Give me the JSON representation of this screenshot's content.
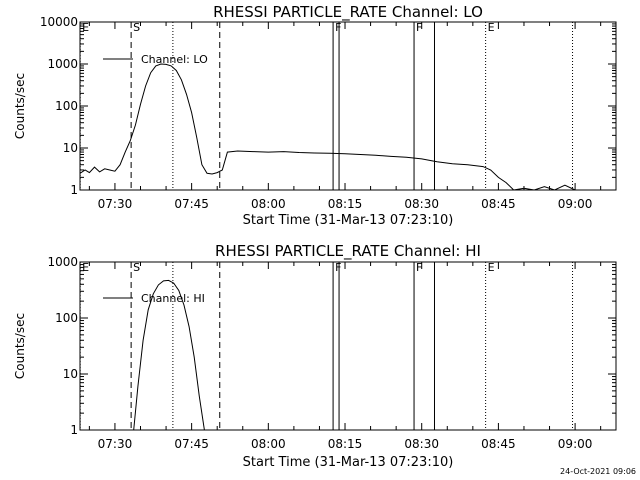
{
  "figure": {
    "timestamp": "24-Oct-2021 09:06"
  },
  "chart_data": [
    {
      "type": "line",
      "title": "RHESSI PARTICLE_RATE Channel: LO",
      "xlabel": "Start Time (31-Mar-13 07:23:10)",
      "ylabel": "Counts/sec",
      "yscale": "log",
      "xlim": [
        "07:23:10",
        "09:08:00"
      ],
      "ylim": [
        1,
        10000
      ],
      "xticks": [
        "07:30",
        "07:45",
        "08:00",
        "08:15",
        "08:30",
        "08:45",
        "09:00"
      ],
      "yticks": [
        "1",
        "10",
        "100",
        "1000",
        "10000"
      ],
      "grid": false,
      "legend": {
        "position": "top-left",
        "entries": [
          "Channel: LO"
        ]
      },
      "markers": [
        {
          "label": "E",
          "time": "07:23:12",
          "style": "dotted"
        },
        {
          "label": "S",
          "time": "07:33:10",
          "style": "dashed"
        },
        {
          "label": "",
          "time": "07:41:20",
          "style": "dotted"
        },
        {
          "label": "",
          "time": "07:50:30",
          "style": "dashed"
        },
        {
          "label": "F",
          "time": "08:12:40",
          "style": "solid"
        },
        {
          "label": "",
          "time": "08:13:50",
          "style": "solid"
        },
        {
          "label": "F",
          "time": "08:28:30",
          "style": "solid"
        },
        {
          "label": "",
          "time": "08:32:30",
          "style": "solid"
        },
        {
          "label": "E",
          "time": "08:42:30",
          "style": "dotted"
        },
        {
          "label": "",
          "time": "08:59:30",
          "style": "dotted"
        }
      ],
      "series": [
        {
          "name": "Channel: LO",
          "x": [
            "07:23:10",
            "07:24:10",
            "07:25:00",
            "07:26:00",
            "07:27:00",
            "07:28:00",
            "07:29:00",
            "07:30:00",
            "07:31:00",
            "07:32:00",
            "07:33:00",
            "07:34:00",
            "07:35:00",
            "07:36:00",
            "07:37:00",
            "07:38:00",
            "07:39:00",
            "07:40:00",
            "07:41:00",
            "07:42:00",
            "07:43:00",
            "07:44:00",
            "07:45:00",
            "07:46:00",
            "07:47:00",
            "07:48:00",
            "07:49:00",
            "07:50:00",
            "07:51:00",
            "07:52:00",
            "07:54:00",
            "07:57:00",
            "08:00:00",
            "08:03:00",
            "08:06:00",
            "08:09:00",
            "08:12:00",
            "08:15:00",
            "08:18:00",
            "08:21:00",
            "08:24:00",
            "08:27:00",
            "08:30:00",
            "08:33:00",
            "08:36:00",
            "08:39:00",
            "08:42:00",
            "08:43:30",
            "08:45:00",
            "08:46:30",
            "08:48:00",
            "08:50:00",
            "08:52:00",
            "08:54:00",
            "08:56:00",
            "08:58:00",
            "09:00:00"
          ],
          "y": [
            2.5,
            3,
            2.6,
            3.5,
            2.7,
            3.2,
            3,
            2.8,
            4,
            8,
            15,
            35,
            110,
            300,
            620,
            900,
            1000,
            980,
            900,
            700,
            420,
            190,
            70,
            18,
            4,
            2.5,
            2.4,
            2.6,
            3,
            8,
            8.5,
            8.2,
            8,
            8.2,
            7.8,
            7.6,
            7.5,
            7.3,
            7,
            6.7,
            6.3,
            6,
            5.5,
            4.7,
            4.2,
            4,
            3.6,
            3,
            2,
            1.5,
            1,
            1.1,
            1,
            1.2,
            1,
            1.3,
            1
          ]
        }
      ]
    },
    {
      "type": "line",
      "title": "RHESSI PARTICLE_RATE Channel: HI",
      "xlabel": "Start Time (31-Mar-13 07:23:10)",
      "ylabel": "Counts/sec",
      "yscale": "log",
      "xlim": [
        "07:23:10",
        "09:08:00"
      ],
      "ylim": [
        1,
        1000
      ],
      "xticks": [
        "07:30",
        "07:45",
        "08:00",
        "08:15",
        "08:30",
        "08:45",
        "09:00"
      ],
      "yticks": [
        "1",
        "10",
        "100",
        "1000"
      ],
      "grid": false,
      "legend": {
        "position": "top-left",
        "entries": [
          "Channel: HI"
        ]
      },
      "markers": [
        {
          "label": "E",
          "time": "07:23:12",
          "style": "dotted"
        },
        {
          "label": "S",
          "time": "07:33:10",
          "style": "dashed"
        },
        {
          "label": "",
          "time": "07:41:20",
          "style": "dotted"
        },
        {
          "label": "",
          "time": "07:50:30",
          "style": "dashed"
        },
        {
          "label": "F",
          "time": "08:12:40",
          "style": "solid"
        },
        {
          "label": "",
          "time": "08:13:50",
          "style": "solid"
        },
        {
          "label": "F",
          "time": "08:28:30",
          "style": "solid"
        },
        {
          "label": "",
          "time": "08:32:30",
          "style": "solid"
        },
        {
          "label": "E",
          "time": "08:42:30",
          "style": "dotted"
        },
        {
          "label": "",
          "time": "08:59:30",
          "style": "dotted"
        }
      ],
      "series": [
        {
          "name": "Channel: HI",
          "x": [
            "07:33:40",
            "07:34:30",
            "07:35:30",
            "07:36:30",
            "07:37:30",
            "07:38:30",
            "07:39:30",
            "07:40:30",
            "07:41:30",
            "07:42:30",
            "07:43:30",
            "07:44:30",
            "07:45:30",
            "07:46:30",
            "07:47:30"
          ],
          "y": [
            1,
            6,
            40,
            140,
            270,
            390,
            460,
            470,
            420,
            310,
            170,
            70,
            20,
            4,
            1
          ]
        }
      ]
    }
  ]
}
